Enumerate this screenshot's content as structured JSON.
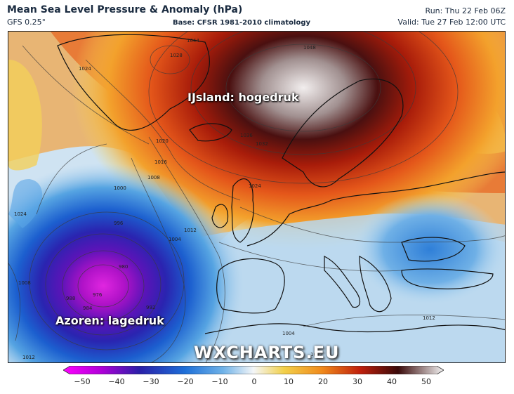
{
  "header": {
    "title": "Mean Sea Level Pressure & Anomaly (hPa)",
    "model": "GFS 0.25°",
    "base": "Base: CFSR 1981-2010 climatology",
    "run": "Run: Thu 22 Feb 06Z",
    "valid": "Valid: Tue 27 Feb 12:00 UTC"
  },
  "map": {
    "annotations": {
      "high": "IJsland: hogedruk",
      "low": "Azoren: lagedruk"
    },
    "watermark": "WXCHARTS.EU",
    "isobar_labels": [
      "1028",
      "1044",
      "1048",
      "1024",
      "1020",
      "1016",
      "1008",
      "1000",
      "996",
      "1004",
      "1012",
      "980",
      "976",
      "988",
      "984",
      "992",
      "1008",
      "1012",
      "1036",
      "1032",
      "1024",
      "1012",
      "1004",
      "1012",
      "1024"
    ]
  },
  "colorbar": {
    "ticks": [
      "−50",
      "−40",
      "−30",
      "−20",
      "−10",
      "0",
      "10",
      "20",
      "30",
      "40",
      "50"
    ],
    "colors": [
      "#d400d4",
      "#8a2be2",
      "#2a1fa8",
      "#1d5fd1",
      "#5ba7e6",
      "#eef3f7",
      "#f2d04a",
      "#f08a1c",
      "#c0200c",
      "#3a0a0a",
      "#f0f0f0"
    ]
  }
}
